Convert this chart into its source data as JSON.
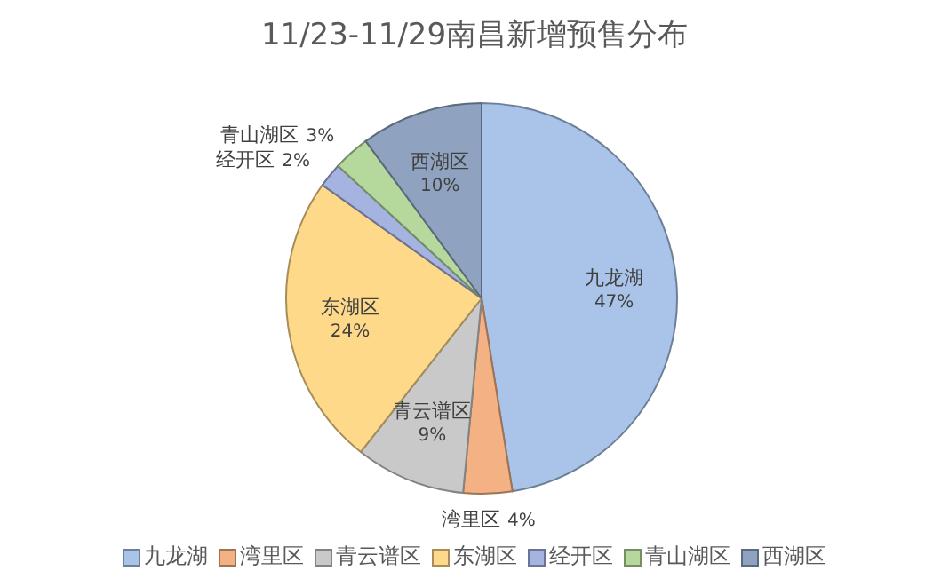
{
  "chart_data": {
    "type": "pie",
    "title": "11/23-11/29南昌新增预售分布",
    "categories": [
      "九龙湖",
      "湾里区",
      "青云谱区",
      "东湖区",
      "经开区",
      "青山湖区",
      "西湖区"
    ],
    "values": [
      47,
      4,
      9,
      24,
      2,
      3,
      10
    ],
    "value_labels": [
      "47%",
      "4%",
      "9%",
      "24%",
      "2%",
      "3%",
      "10%"
    ],
    "colors": [
      "#a9c4e8",
      "#f4b183",
      "#c9c9c9",
      "#ffd98a",
      "#a4b3e0",
      "#b5d99c",
      "#8fa3c0"
    ],
    "legend": "bottom"
  }
}
